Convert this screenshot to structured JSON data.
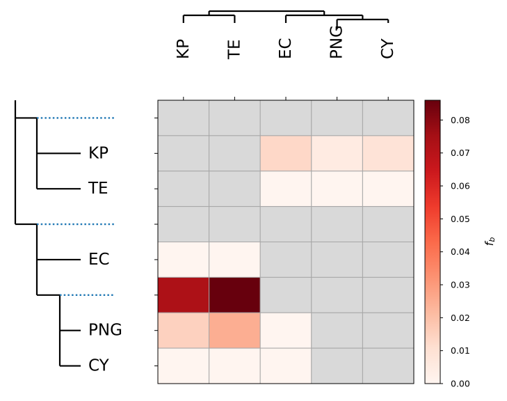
{
  "chart_data": {
    "type": "heatmap",
    "title": "",
    "xlabel": "",
    "ylabel": "",
    "col_labels": [
      "KP",
      "TE",
      "EC",
      "PNG",
      "CY"
    ],
    "row_labels": [
      "",
      "KP",
      "TE",
      "",
      "EC",
      "",
      "PNG",
      "CY"
    ],
    "values": [
      [
        null,
        null,
        null,
        null,
        null
      ],
      [
        null,
        null,
        0.013,
        0.005,
        0.009
      ],
      [
        null,
        null,
        0.0,
        0.0,
        0.0
      ],
      [
        null,
        null,
        null,
        null,
        null
      ],
      [
        0.0,
        0.0,
        null,
        null,
        null
      ],
      [
        0.073,
        0.086,
        null,
        null,
        null
      ],
      [
        0.015,
        0.025,
        0.0,
        null,
        null
      ],
      [
        0.0,
        0.0,
        0.0,
        null,
        null
      ]
    ],
    "missing_color": "#d9d9d9",
    "colormap": "Reds",
    "colorbar": {
      "label": "f_b",
      "label_main": "f",
      "label_sub": "b",
      "min": 0.0,
      "max": 0.086,
      "ticks": [
        "0.00",
        "0.01",
        "0.02",
        "0.03",
        "0.04",
        "0.05",
        "0.06",
        "0.07",
        "0.08"
      ],
      "tick_values": [
        0.0,
        0.01,
        0.02,
        0.03,
        0.04,
        0.05,
        0.06,
        0.07,
        0.08
      ]
    },
    "row_dendrogram": "((KP,TE),(EC,(PNG,CY)))",
    "col_dendrogram": "((KP,TE),(EC,(PNG,CY)))",
    "dotted_rows": [
      0,
      3,
      5
    ],
    "dotted_color": "#1f77b4"
  }
}
